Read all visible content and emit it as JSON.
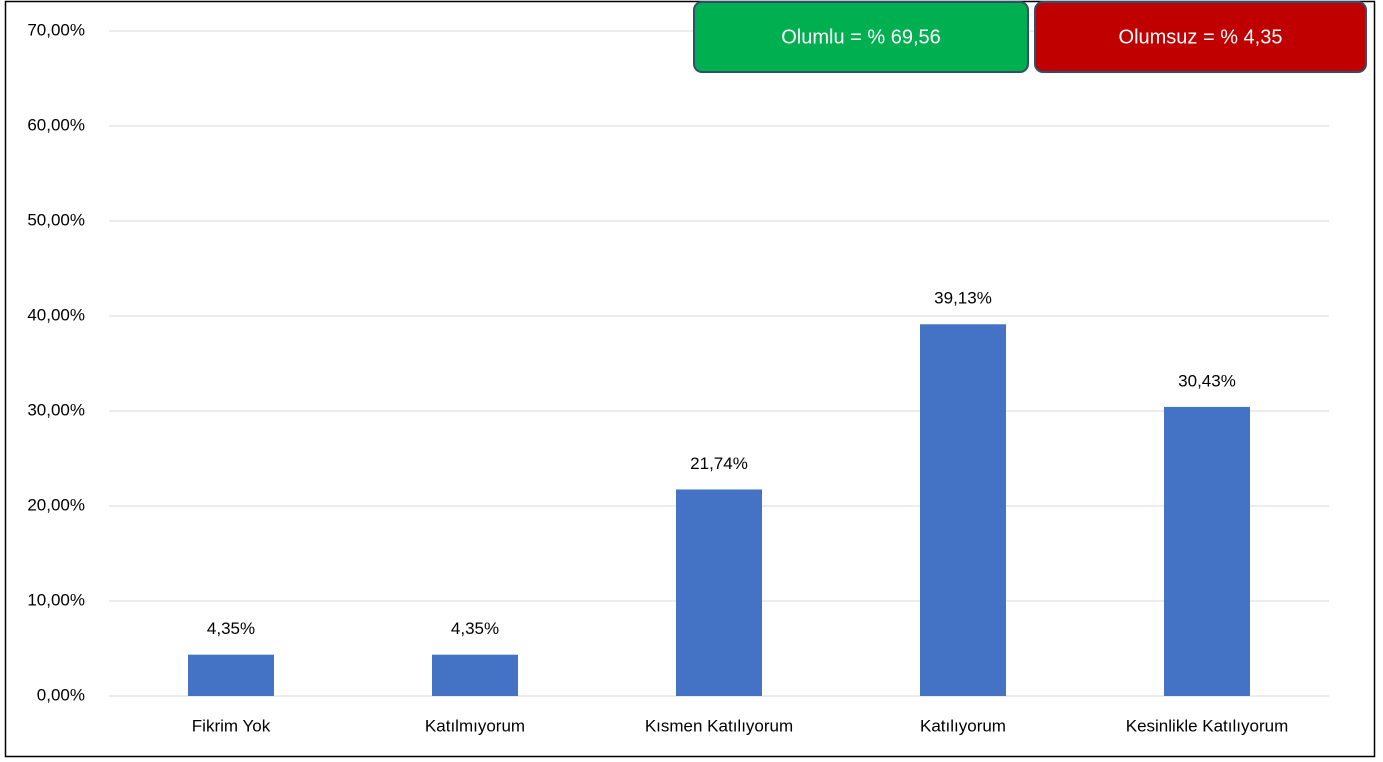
{
  "chart_data": {
    "type": "bar",
    "categories": [
      "Fikrim Yok",
      "Katılmıyorum",
      "Kısmen Katılıyorum",
      "Katılıyorum",
      "Kesinlikle Katılıyorum"
    ],
    "values": [
      4.35,
      4.35,
      21.74,
      39.13,
      30.43
    ],
    "value_labels": [
      "4,35%",
      "4,35%",
      "21,74%",
      "39,13%",
      "30,43%"
    ],
    "color": "#4472c4",
    "ylim": [
      0,
      70
    ],
    "yticks": [
      {
        "value": 0,
        "label": "0,00%"
      },
      {
        "value": 10,
        "label": "10,00%"
      },
      {
        "value": 20,
        "label": "20,00%"
      },
      {
        "value": 30,
        "label": "30,00%"
      },
      {
        "value": 40,
        "label": "40,00%"
      },
      {
        "value": 50,
        "label": "50,00%"
      },
      {
        "value": 60,
        "label": "60,00%"
      },
      {
        "value": 70,
        "label": "70,00%"
      }
    ],
    "grid": true,
    "annotations": [
      {
        "text": "Olumlu = % 69,56",
        "color": "#00b050"
      },
      {
        "text": "Olumsuz = % 4,35",
        "color": "#c00000"
      }
    ]
  }
}
